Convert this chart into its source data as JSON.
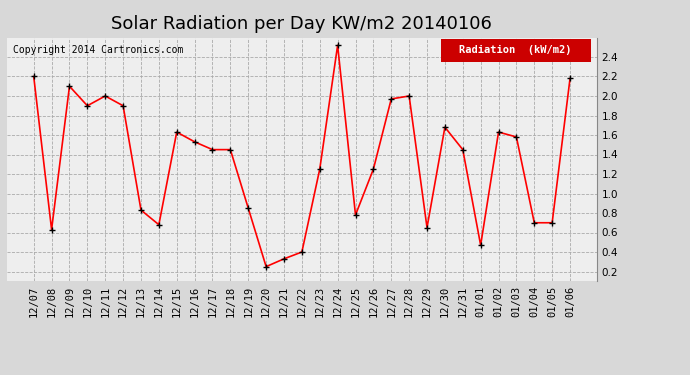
{
  "title": "Solar Radiation per Day KW/m2 20140106",
  "copyright_text": "Copyright 2014 Cartronics.com",
  "legend_label": "Radiation  (kW/m2)",
  "dates": [
    "12/07",
    "12/08",
    "12/09",
    "12/10",
    "12/11",
    "12/12",
    "12/13",
    "12/14",
    "12/15",
    "12/16",
    "12/17",
    "12/18",
    "12/19",
    "12/20",
    "12/21",
    "12/22",
    "12/23",
    "12/24",
    "12/25",
    "12/26",
    "12/27",
    "12/28",
    "12/29",
    "12/30",
    "12/31",
    "01/01",
    "01/02",
    "01/03",
    "01/04",
    "01/05",
    "01/06"
  ],
  "values": [
    2.2,
    0.63,
    2.1,
    1.9,
    2.0,
    1.9,
    0.83,
    0.68,
    1.63,
    1.53,
    1.45,
    1.45,
    0.85,
    0.25,
    0.33,
    0.4,
    1.25,
    2.52,
    0.78,
    1.25,
    1.97,
    2.0,
    0.65,
    1.68,
    1.45,
    0.47,
    1.63,
    1.58,
    0.7,
    0.7,
    2.18
  ],
  "line_color": "red",
  "marker": "+",
  "marker_color": "black",
  "marker_size": 5,
  "line_width": 1.2,
  "ylim": [
    0.1,
    2.6
  ],
  "yticks": [
    0.2,
    0.4,
    0.6,
    0.8,
    1.0,
    1.2,
    1.4,
    1.6,
    1.8,
    2.0,
    2.2,
    2.4
  ],
  "background_color": "#d8d8d8",
  "plot_bg_color": "#eeeeee",
  "grid_color": "#aaaaaa",
  "title_fontsize": 13,
  "tick_fontsize": 7.5,
  "legend_bg_color": "#cc0000",
  "legend_text_color": "white",
  "legend_fontsize": 7.5
}
